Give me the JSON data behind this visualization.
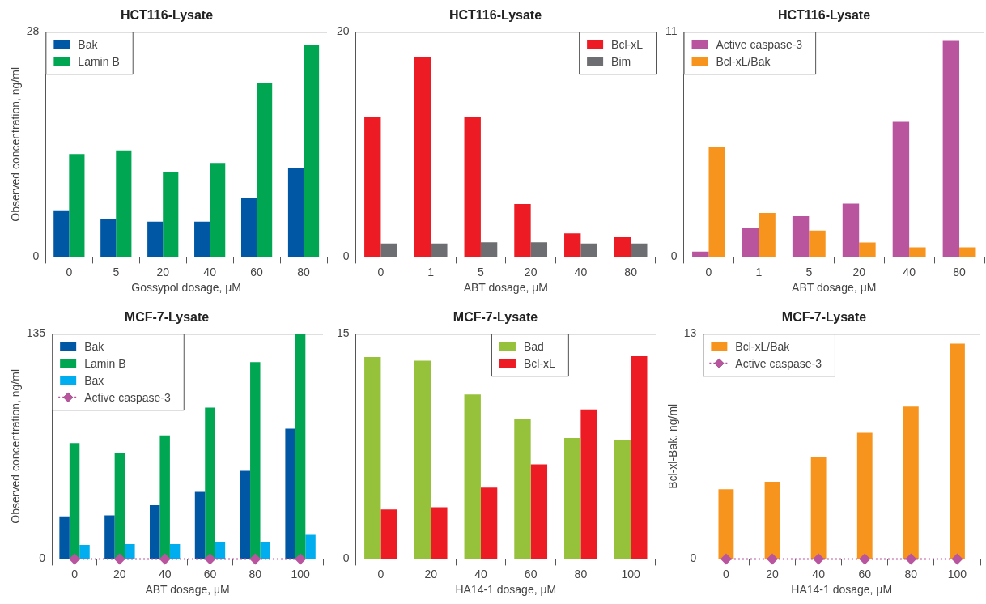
{
  "chart_data": [
    {
      "type": "bar",
      "title": "HCT116-Lysate",
      "xlabel": "Gossypol dosage, μM",
      "ylabel": "Observed concentration, ng/ml",
      "categories": [
        "0",
        "5",
        "20",
        "40",
        "60",
        "80"
      ],
      "ylim": [
        0,
        28
      ],
      "yticks": [
        0,
        28
      ],
      "legend": "top left",
      "series": [
        {
          "name": "Bak",
          "color": "#0057a4",
          "values": [
            5.8,
            4.75,
            4.4,
            4.4,
            7.4,
            11.0
          ]
        },
        {
          "name": "Lamin B",
          "color": "#00a651",
          "values": [
            12.8,
            13.25,
            10.6,
            11.7,
            21.6,
            26.4
          ]
        }
      ]
    },
    {
      "type": "bar",
      "title": "HCT116-Lysate",
      "xlabel": "ABT dosage, μM",
      "categories": [
        "0",
        "1",
        "5",
        "20",
        "40",
        "80"
      ],
      "ylim": [
        0,
        20
      ],
      "yticks": [
        0,
        20
      ],
      "legend": "top right",
      "series": [
        {
          "name": "Bcl-xL",
          "color": "#ed1c24",
          "values": [
            12.4,
            17.75,
            12.4,
            4.7,
            2.1,
            1.75
          ]
        },
        {
          "name": "Bim",
          "color": "#6d6e71",
          "values": [
            1.2,
            1.2,
            1.3,
            1.3,
            1.2,
            1.2
          ]
        }
      ]
    },
    {
      "type": "bar",
      "title": "HCT116-Lysate",
      "xlabel": "ABT dosage, μM",
      "categories": [
        "0",
        "1",
        "5",
        "20",
        "40",
        "80"
      ],
      "ylim": [
        0,
        11
      ],
      "yticks": [
        0,
        11
      ],
      "legend": "top left",
      "series": [
        {
          "name": "Active caspase-3",
          "color": "#b9559f",
          "values": [
            0.26,
            1.41,
            1.99,
            2.61,
            6.6,
            10.55
          ]
        },
        {
          "name": "Bcl-xL/Bak",
          "color": "#f7941d",
          "values": [
            5.36,
            2.15,
            1.29,
            0.71,
            0.47,
            0.47
          ]
        }
      ]
    },
    {
      "type": "bar",
      "title": "MCF-7-Lysate",
      "xlabel": "ABT dosage, μM",
      "ylabel": "Observed concentration, ng/ml",
      "categories": [
        "0",
        "20",
        "40",
        "60",
        "80",
        "100"
      ],
      "ylim": [
        0,
        135
      ],
      "yticks": [
        0,
        135
      ],
      "legend": "top left",
      "series": [
        {
          "name": "Bak",
          "color": "#0057a4",
          "values": [
            25.6,
            26.1,
            32.2,
            40.2,
            52.9,
            78.1
          ]
        },
        {
          "name": "Lamin B",
          "color": "#00a651",
          "values": [
            69.5,
            63.5,
            74.1,
            90.7,
            118,
            135
          ]
        },
        {
          "name": "Bax",
          "color": "#00aeef",
          "values": [
            8.4,
            8.9,
            8.9,
            10.4,
            10.4,
            14.5
          ]
        },
        {
          "name": "Active caspase-3",
          "type": "line",
          "color": "#b9559f",
          "marker": "diamond",
          "line_style": "dotted",
          "values": [
            0,
            0,
            0,
            0,
            0,
            0
          ]
        }
      ]
    },
    {
      "type": "bar",
      "title": "MCF-7-Lysate",
      "xlabel": "HA14-1 dosage, μM",
      "categories": [
        "0",
        "20",
        "40",
        "60",
        "80",
        "100"
      ],
      "ylim": [
        0,
        15
      ],
      "yticks": [
        0,
        15
      ],
      "legend": "top",
      "series": [
        {
          "name": "Bad",
          "color": "#96c23b",
          "values": [
            13.45,
            13.2,
            10.95,
            9.35,
            8.05,
            7.95
          ]
        },
        {
          "name": "Bcl-xL",
          "color": "#ed1c24",
          "values": [
            3.3,
            3.45,
            4.75,
            6.3,
            9.95,
            13.5
          ]
        }
      ]
    },
    {
      "type": "bar",
      "title": "MCF-7-Lysate",
      "xlabel": "HA14-1 dosage, μM",
      "ylabel": "Bcl-xl-Bak, ng/ml",
      "categories": [
        "0",
        "20",
        "40",
        "60",
        "80",
        "100"
      ],
      "ylim": [
        0,
        13
      ],
      "yticks": [
        0,
        13
      ],
      "legend": "top left",
      "series": [
        {
          "name": "Bcl-xL/Bak",
          "color": "#f7941d",
          "values": [
            4.02,
            4.46,
            5.87,
            7.29,
            8.79,
            12.43
          ]
        },
        {
          "name": "Active caspase-3",
          "type": "line",
          "color": "#b9559f",
          "marker": "diamond",
          "line_style": "dotted",
          "values": [
            0,
            0,
            0,
            0,
            0,
            0
          ]
        }
      ]
    }
  ]
}
